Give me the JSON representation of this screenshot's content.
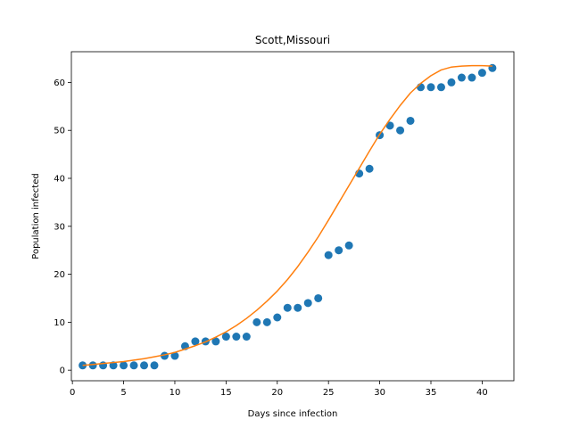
{
  "chart_data": {
    "type": "scatter",
    "title": "Scott,Missouri",
    "xlabel": "Days since infection",
    "ylabel": "Population infected",
    "xlim": [
      -0.1,
      43.1
    ],
    "ylim": [
      -2.2,
      66.4
    ],
    "xticks": [
      0,
      5,
      10,
      15,
      20,
      25,
      30,
      35,
      40
    ],
    "yticks": [
      0,
      10,
      20,
      30,
      40,
      50,
      60
    ],
    "grid": false,
    "series": [
      {
        "kind": "scatter",
        "color": "#1f77b4",
        "x": [
          1,
          2,
          3,
          4,
          5,
          6,
          7,
          8,
          9,
          10,
          11,
          12,
          13,
          14,
          15,
          16,
          17,
          18,
          19,
          20,
          21,
          22,
          23,
          24,
          25,
          26,
          27,
          28,
          29,
          30,
          31,
          32,
          33,
          34,
          35,
          36,
          37,
          38,
          39,
          40,
          41
        ],
        "y": [
          1,
          1,
          1,
          1,
          1,
          1,
          1,
          1,
          3,
          3,
          5,
          6,
          6,
          6,
          7,
          7,
          7,
          10,
          10,
          11,
          13,
          13,
          14,
          15,
          24,
          25,
          26,
          41,
          42,
          49,
          51,
          50,
          52,
          59,
          59,
          59,
          60,
          61,
          61,
          62,
          63
        ]
      },
      {
        "kind": "line",
        "color": "#ff7f0e",
        "x": [
          1,
          2,
          3,
          4,
          5,
          6,
          7,
          8,
          9,
          10,
          11,
          12,
          13,
          14,
          15,
          16,
          17,
          18,
          19,
          20,
          21,
          22,
          23,
          24,
          25,
          26,
          27,
          28,
          29,
          30,
          31,
          32,
          33,
          34,
          35,
          36,
          37,
          38,
          39,
          40,
          41
        ],
        "y": [
          1.0,
          1.2,
          1.4,
          1.6,
          1.8,
          2.1,
          2.4,
          2.8,
          3.2,
          3.7,
          4.4,
          5.1,
          5.9,
          6.9,
          8.0,
          9.3,
          10.8,
          12.5,
          14.4,
          16.5,
          18.9,
          21.6,
          24.6,
          27.8,
          31.3,
          34.9,
          38.5,
          42.1,
          45.7,
          49.2,
          52.3,
          55.2,
          57.8,
          59.8,
          61.4,
          62.6,
          63.2,
          63.4,
          63.5,
          63.5,
          63.4
        ]
      }
    ]
  }
}
